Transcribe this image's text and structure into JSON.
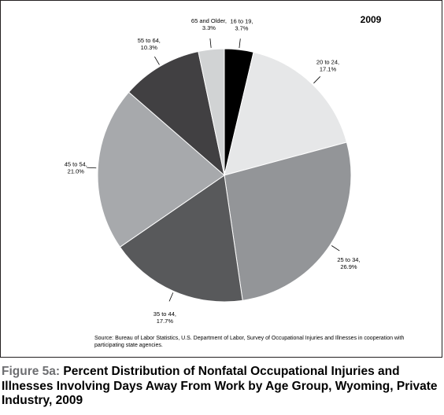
{
  "year": "2009",
  "source_note": "Source: Bureau of Labor Statistics, U.S. Department of Labor, Survey of Occupational Injuries and Illnesses in cooperation with participating state agencies.",
  "caption": {
    "figure_number": "Figure 5a:",
    "text": "Percent Distribution of Nonfatal Occupational Injuries and Illnesses Involving Days Away From Work by Age Group, Wyoming, Private Industry, 2009"
  },
  "chart_data": {
    "type": "pie",
    "title": "2009",
    "unit": "%",
    "slices": [
      {
        "label": "16 to 19,",
        "value_text": "3.7%",
        "value": 3.7,
        "color": "#000000"
      },
      {
        "label": "20 to 24,",
        "value_text": "17.1%",
        "value": 17.1,
        "color": "#e6e7e8"
      },
      {
        "label": "25 to 34,",
        "value_text": "26.9%",
        "value": 26.9,
        "color": "#939598"
      },
      {
        "label": "35 to 44,",
        "value_text": "17.7%",
        "value": 17.7,
        "color": "#58595b"
      },
      {
        "label": "45 to 54,",
        "value_text": "21.0%",
        "value": 21.0,
        "color": "#a7a9ac"
      },
      {
        "label": "55 to 64,",
        "value_text": "10.3%",
        "value": 10.3,
        "color": "#414042"
      },
      {
        "label": "65 and Older,",
        "value_text": "3.3%",
        "value": 3.3,
        "color": "#d1d3d4"
      }
    ]
  }
}
